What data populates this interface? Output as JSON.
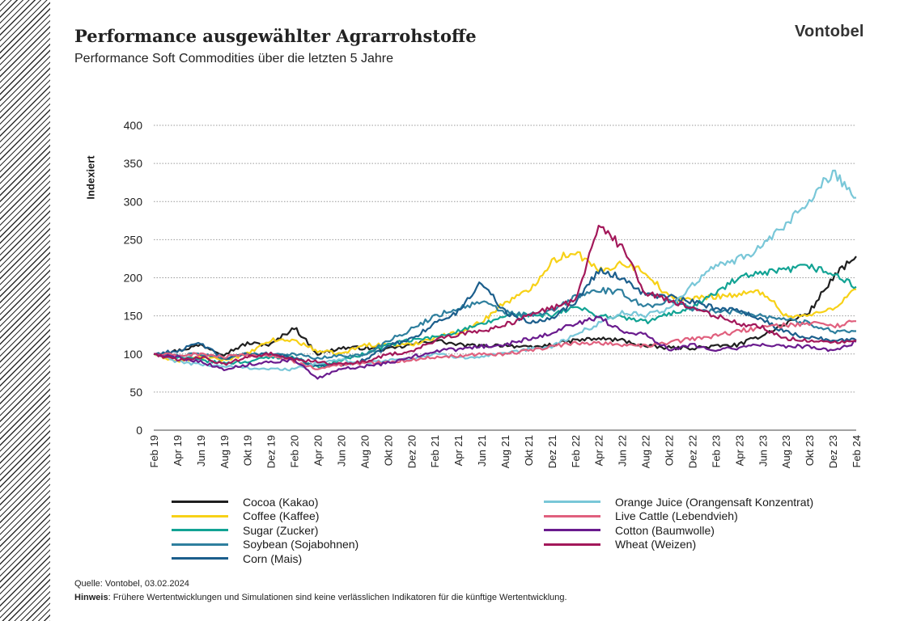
{
  "header": {
    "title": "Performance ausgewählter Agrarrohstoffe",
    "subtitle": "Performance Soft Commodities über die letzten 5 Jahre",
    "brand": "Vontobel"
  },
  "footer": {
    "source": "Quelle: Vontobel, 03.02.2024",
    "note_label": "Hinweis",
    "note_text": ": Frühere Wertentwicklungen und Simulationen sind keine verlässlichen Indikatoren für die künftige Wertentwicklung."
  },
  "chart_data": {
    "type": "line",
    "ylabel": "Indexiert",
    "xlabel": "",
    "ylim": [
      0,
      400
    ],
    "yticks": [
      0,
      50,
      100,
      150,
      200,
      250,
      300,
      350,
      400
    ],
    "grid": "horizontal dotted",
    "legend_position": "bottom",
    "x_tick_labels": [
      "Feb 19",
      "Apr 19",
      "Jun 19",
      "Aug 19",
      "Okt 19",
      "Dez 19",
      "Feb 20",
      "Apr 20",
      "Jun 20",
      "Aug 20",
      "Okt 20",
      "Dez 20",
      "Feb 21",
      "Apr 21",
      "Jun 21",
      "Aug 21",
      "Okt 21",
      "Dez 21",
      "Feb 22",
      "Apr 22",
      "Jun 22",
      "Aug 22",
      "Okt 22",
      "Dez 22",
      "Feb 23",
      "Apr 23",
      "Jun 23",
      "Aug 23",
      "Okt 23",
      "Dez 23",
      "Feb 24"
    ],
    "series": [
      {
        "name": "Cocoa (Kakao)",
        "color": "#1f1f1f",
        "values": [
          100,
          104,
          112,
          100,
          114,
          112,
          135,
          100,
          108,
          108,
          106,
          112,
          118,
          112,
          110,
          112,
          108,
          112,
          118,
          120,
          118,
          110,
          108,
          108,
          110,
          112,
          125,
          140,
          155,
          200,
          228
        ]
      },
      {
        "name": "Coffee (Kaffee)",
        "color": "#f7d117",
        "values": [
          100,
          90,
          96,
          92,
          100,
          118,
          118,
          104,
          100,
          112,
          112,
          112,
          122,
          128,
          142,
          168,
          182,
          222,
          235,
          208,
          220,
          208,
          174,
          172,
          176,
          178,
          182,
          150,
          150,
          160,
          185
        ]
      },
      {
        "name": "Sugar (Zucker)",
        "color": "#12a394",
        "values": [
          100,
          96,
          92,
          88,
          90,
          96,
          96,
          82,
          92,
          100,
          112,
          118,
          122,
          130,
          138,
          150,
          152,
          150,
          162,
          150,
          148,
          142,
          152,
          162,
          180,
          200,
          205,
          210,
          215,
          205,
          188
        ]
      },
      {
        "name": "Soybean (Sojabohnen)",
        "color": "#2e7f9e",
        "values": [
          100,
          98,
          100,
          94,
          100,
          100,
          100,
          94,
          98,
          98,
          118,
          132,
          150,
          160,
          168,
          155,
          150,
          156,
          175,
          184,
          180,
          162,
          170,
          160,
          155,
          156,
          150,
          146,
          140,
          130,
          130
        ]
      },
      {
        "name": "Corn (Mais)",
        "color": "#1b5e8c",
        "values": [
          100,
          104,
          114,
          94,
          100,
          100,
          94,
          84,
          86,
          92,
          110,
          120,
          140,
          155,
          195,
          155,
          142,
          148,
          168,
          210,
          200,
          178,
          175,
          168,
          160,
          158,
          145,
          128,
          122,
          118,
          118
        ]
      },
      {
        "name": "Orange Juice (Orangensaft Konzentrat)",
        "color": "#79c7d8",
        "values": [
          100,
          90,
          86,
          84,
          82,
          80,
          80,
          88,
          92,
          88,
          92,
          94,
          100,
          96,
          96,
          100,
          106,
          110,
          125,
          140,
          155,
          150,
          160,
          190,
          215,
          225,
          240,
          270,
          300,
          340,
          305
        ]
      },
      {
        "name": "Live Cattle (Lebendvieh)",
        "color": "#e0607e",
        "values": [
          100,
          98,
          100,
          96,
          98,
          98,
          90,
          80,
          86,
          88,
          90,
          92,
          96,
          98,
          100,
          100,
          104,
          110,
          114,
          115,
          112,
          110,
          115,
          120,
          124,
          130,
          135,
          138,
          140,
          136,
          143
        ]
      },
      {
        "name": "Cotton (Baumwolle)",
        "color": "#6a1b8e",
        "values": [
          100,
          96,
          90,
          80,
          86,
          90,
          92,
          68,
          80,
          84,
          88,
          96,
          104,
          106,
          110,
          112,
          120,
          128,
          140,
          148,
          130,
          126,
          106,
          112,
          106,
          108,
          112,
          110,
          110,
          104,
          116
        ]
      },
      {
        "name": "Wheat (Weizen)",
        "color": "#a3185a",
        "values": [
          100,
          92,
          96,
          86,
          96,
          100,
          92,
          90,
          86,
          90,
          100,
          102,
          118,
          126,
          130,
          138,
          150,
          160,
          170,
          270,
          240,
          180,
          170,
          160,
          150,
          140,
          135,
          120,
          118,
          114,
          118
        ]
      }
    ]
  }
}
